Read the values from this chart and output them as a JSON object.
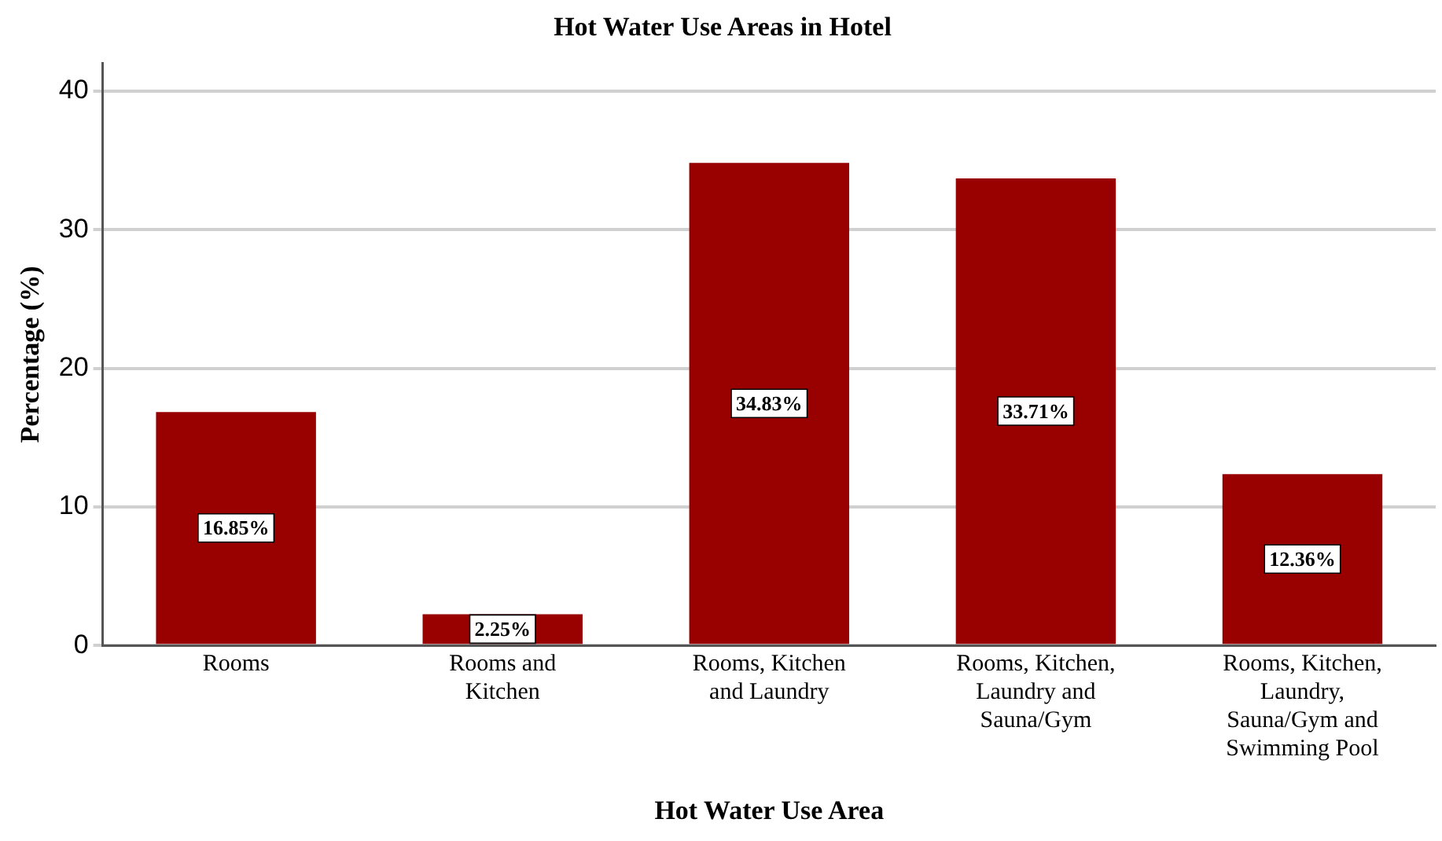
{
  "chart_data": {
    "type": "bar",
    "title": "Hot Water Use Areas in Hotel",
    "xlabel": "Hot Water Use Area",
    "ylabel": "Percentage (%)",
    "categories": [
      "Rooms",
      "Rooms and Kitchen",
      "Rooms, Kitchen and Laundry",
      "Rooms, Kitchen, Laundry and Sauna/Gym",
      "Rooms, Kitchen, Laundry, Sauna/Gym and Swimming Pool"
    ],
    "values": [
      16.85,
      2.25,
      34.83,
      33.71,
      12.36
    ],
    "value_labels": [
      "16.85%",
      "2.25%",
      "34.83%",
      "33.71%",
      "12.36%"
    ],
    "color": "#990000",
    "ylim": [
      0,
      42
    ],
    "yticks": [
      0,
      10,
      20,
      30,
      40
    ],
    "grid": "y",
    "legend": false
  }
}
